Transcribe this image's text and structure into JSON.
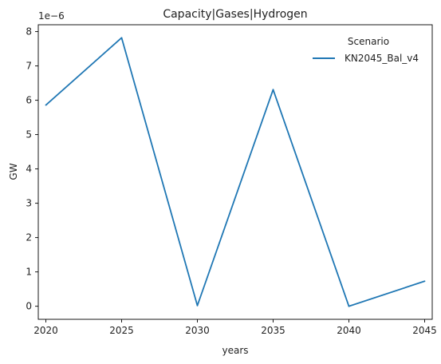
{
  "chart_data": {
    "type": "line",
    "title": "Capacity|Gases|Hydrogen",
    "xlabel": "years",
    "ylabel": "GW",
    "y_scale_label": "1e−6",
    "x": [
      2020,
      2025,
      2030,
      2035,
      2040,
      2045
    ],
    "x_ticks": [
      "2020",
      "2025",
      "2030",
      "2035",
      "2040",
      "2045"
    ],
    "y_ticks": [
      "0",
      "1",
      "2",
      "3",
      "4",
      "5",
      "6",
      "7",
      "8"
    ],
    "xlim": [
      2019.5,
      2045.5
    ],
    "ylim": [
      -0.38,
      8.2
    ],
    "series": [
      {
        "name": "KN2045_Bal_v4",
        "color": "#1f77b4",
        "values": [
          5.86,
          7.82,
          0.02,
          6.31,
          0.0,
          0.73
        ]
      }
    ],
    "legend": {
      "title": "Scenario",
      "placement": "top-right"
    },
    "grid": false
  }
}
